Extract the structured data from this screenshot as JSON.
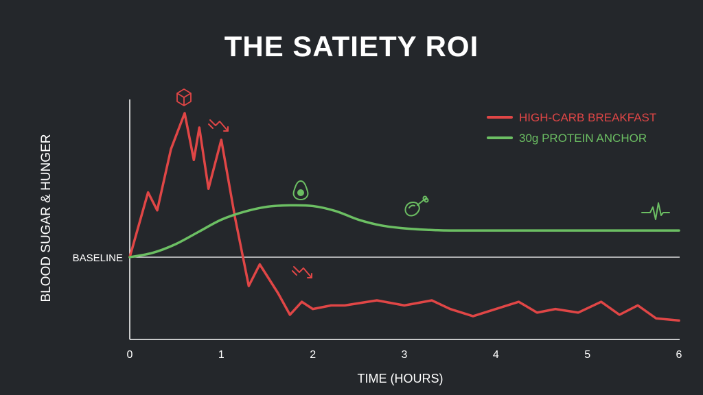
{
  "chart_data": {
    "type": "line",
    "title": "THE SATIETY ROI",
    "xlabel": "TIME (HOURS)",
    "ylabel": "BLOOD SUGAR & HUNGER",
    "baseline_label": "BASELINE",
    "xlim": [
      0,
      6
    ],
    "ylim": [
      -1.3,
      2.1
    ],
    "x_ticks": [
      "0",
      "1",
      "2",
      "3",
      "4",
      "5",
      "6"
    ],
    "legend_position": "top-right",
    "grid": false,
    "series": [
      {
        "name": "HIGH-CARB BREAKFAST",
        "color": "#e04646",
        "x": [
          0,
          0.2,
          0.3,
          0.45,
          0.6,
          0.7,
          0.76,
          0.86,
          1.0,
          1.15,
          1.3,
          1.42,
          1.62,
          1.75,
          1.88,
          2.0,
          2.2,
          2.35,
          2.7,
          3.0,
          3.3,
          3.5,
          3.75,
          4.0,
          4.25,
          4.45,
          4.65,
          4.9,
          5.15,
          5.35,
          5.55,
          5.75,
          6.0
        ],
        "y": [
          0,
          0.9,
          0.65,
          1.5,
          2.0,
          1.35,
          1.8,
          0.95,
          1.63,
          0.55,
          -0.4,
          -0.1,
          -0.5,
          -0.8,
          -0.62,
          -0.72,
          -0.67,
          -0.67,
          -0.6,
          -0.67,
          -0.6,
          -0.72,
          -0.82,
          -0.72,
          -0.62,
          -0.77,
          -0.72,
          -0.77,
          -0.62,
          -0.8,
          -0.67,
          -0.85,
          -0.88
        ]
      },
      {
        "name": "30g PROTEIN ANCHOR",
        "color": "#6cbf63",
        "x": [
          0,
          0.25,
          0.5,
          0.75,
          1.0,
          1.25,
          1.5,
          1.75,
          2.0,
          2.25,
          2.5,
          2.75,
          3.0,
          3.25,
          3.5,
          4.0,
          5.0,
          6.0
        ],
        "y": [
          0,
          0.06,
          0.18,
          0.35,
          0.52,
          0.63,
          0.7,
          0.72,
          0.71,
          0.64,
          0.52,
          0.44,
          0.4,
          0.38,
          0.37,
          0.37,
          0.37,
          0.37
        ]
      }
    ],
    "annotations": [
      {
        "icon": "sugar-cube-icon",
        "x": 0.6,
        "y": 2.3,
        "color": "#e04646"
      },
      {
        "icon": "down-arrow-icon",
        "x": 1.0,
        "y": 1.9,
        "color": "#e04646"
      },
      {
        "icon": "down-arrow-icon",
        "x": 1.9,
        "y": -0.25,
        "color": "#e04646"
      },
      {
        "icon": "avocado-icon",
        "x": 1.85,
        "y": 0.98,
        "color": "#6cbf63"
      },
      {
        "icon": "chicken-leg-icon",
        "x": 3.1,
        "y": 0.7,
        "color": "#6cbf63"
      },
      {
        "icon": "heartbeat-icon",
        "x": 5.7,
        "y": 0.65,
        "color": "#6cbf63"
      }
    ]
  }
}
